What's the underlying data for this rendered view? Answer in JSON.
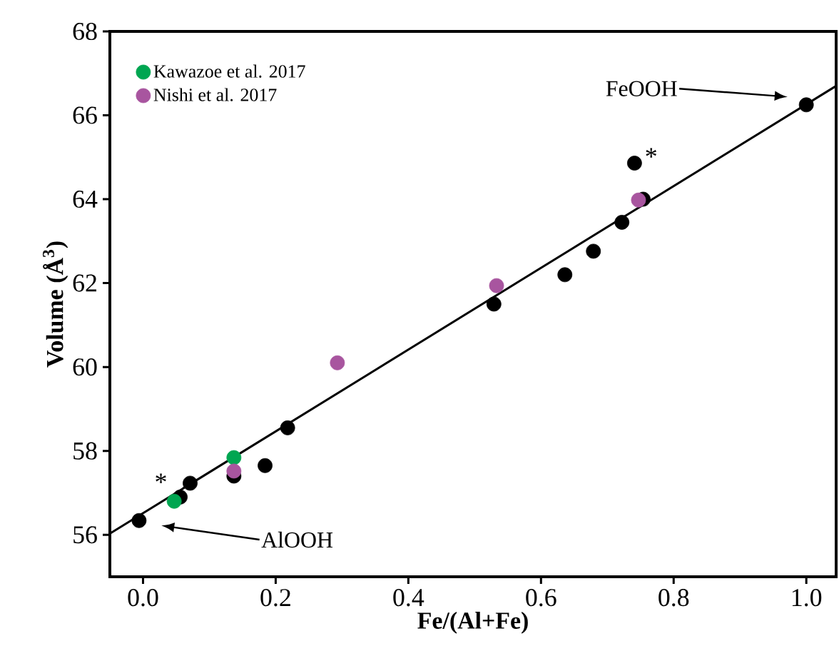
{
  "chart_data": {
    "type": "scatter",
    "xlabel": "Fe/(Al+Fe)",
    "ylabel": "Volume (Å$^{3}$)",
    "xlim": [
      -0.05,
      1.045
    ],
    "ylim": [
      55,
      68
    ],
    "xticks": [
      {
        "value": 0,
        "label": "0.0"
      },
      0.2,
      0.4,
      0.6,
      0.8,
      {
        "value": 1,
        "label": "1.0"
      }
    ],
    "yticks": [
      56,
      58,
      60,
      62,
      64,
      66,
      68
    ],
    "grid": false,
    "legend": "top left",
    "marker": "circle",
    "series": [
      {
        "type": "line",
        "marker": "none",
        "color": "#000000",
        "x": [
          -0.05,
          1.045
        ],
        "values": [
          56.03,
          66.7
        ]
      },
      {
        "color": "#000000",
        "x": [
          -0.006,
          0.056,
          0.071,
          0.137,
          0.184,
          0.218,
          0.529,
          0.636,
          0.679,
          0.722,
          0.741,
          0.754,
          1.0
        ],
        "values": [
          56.34,
          56.9,
          57.23,
          57.4,
          57.65,
          58.55,
          61.5,
          62.2,
          62.76,
          63.45,
          64.86,
          64.0,
          66.25
        ]
      },
      {
        "name": "Kawazoe et al. 2017",
        "color": "#00a651",
        "x": [
          0.047,
          0.137
        ],
        "values": [
          56.8,
          57.84
        ]
      },
      {
        "name": "Nishi et al. 2017",
        "color": "#a8559f",
        "x": [
          0.137,
          0.293,
          0.533,
          0.747
        ],
        "values": [
          57.52,
          60.1,
          61.94,
          63.98
        ]
      }
    ],
    "annotations": [
      {
        "text": "*",
        "x": 0.047,
        "y": 56.8
      },
      {
        "text": "*",
        "x": 0.741,
        "y": 64.86
      },
      "AlOOH",
      "FeOOH"
    ]
  }
}
